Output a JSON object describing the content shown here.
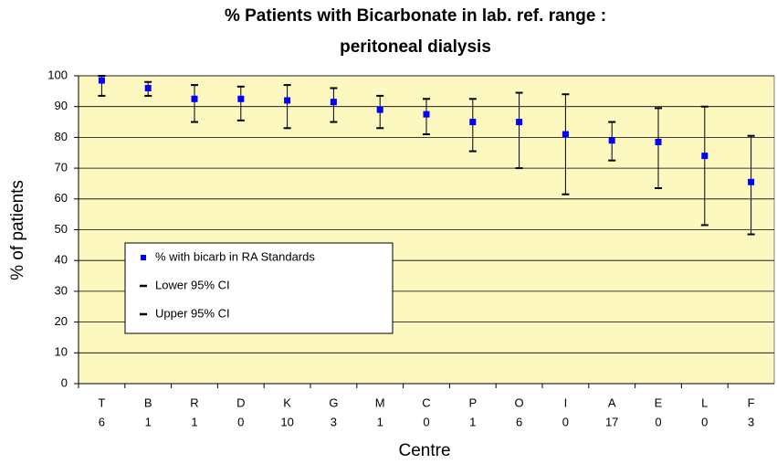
{
  "chart_data": {
    "type": "errorbar",
    "title": [
      "% Patients with Bicarbonate in lab. ref. range :",
      "peritoneal dialysis"
    ],
    "x_label": "Centre",
    "y_label": "% of patients",
    "categories": [
      [
        "T",
        "6"
      ],
      [
        "B",
        "1"
      ],
      [
        "R",
        "1"
      ],
      [
        "D",
        "0"
      ],
      [
        "K",
        "10"
      ],
      [
        "G",
        "3"
      ],
      [
        "M",
        "1"
      ],
      [
        "C",
        "0"
      ],
      [
        "P",
        "1"
      ],
      [
        "O",
        "6"
      ],
      [
        "I",
        "0"
      ],
      [
        "A",
        "17"
      ],
      [
        "E",
        "0"
      ],
      [
        "L",
        "0"
      ],
      [
        "F",
        "3"
      ]
    ],
    "series": [
      {
        "name": "% with bicarb in RA Standards",
        "color": "#0000ff",
        "values": [
          98.5,
          96,
          92.5,
          92.5,
          92,
          91.5,
          89,
          87.5,
          85,
          85,
          81,
          79,
          78.5,
          74,
          65.5
        ]
      },
      {
        "name": "Lower 95% CI",
        "color": "#000000",
        "values": [
          93.5,
          93.5,
          85,
          85.5,
          83,
          85,
          83,
          81,
          75.5,
          70,
          61.5,
          72.5,
          63.5,
          51.5,
          48.5
        ]
      },
      {
        "name": "Upper 95% CI",
        "color": "#000000",
        "values": [
          100,
          98,
          97,
          96.5,
          97,
          96,
          93.5,
          92.5,
          92.5,
          94.5,
          94,
          85,
          89.5,
          90,
          80.5
        ]
      }
    ],
    "ylim": [
      0,
      100
    ],
    "yticks": [
      0,
      10,
      20,
      30,
      40,
      50,
      60,
      70,
      80,
      90,
      100
    ],
    "grid": true
  }
}
